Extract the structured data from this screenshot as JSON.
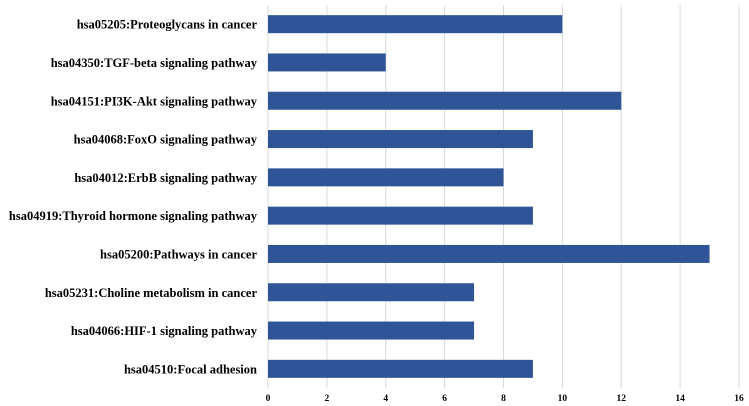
{
  "chart_data": {
    "type": "bar",
    "orientation": "horizontal",
    "categories": [
      "hsa05205:Proteoglycans in cancer",
      "hsa04350:TGF-beta signaling pathway",
      "hsa04151:PI3K-Akt signaling pathway",
      "hsa04068:FoxO signaling pathway",
      "hsa04012:ErbB signaling pathway",
      "hsa04919:Thyroid hormone signaling pathway",
      "hsa05200:Pathways in cancer",
      "hsa05231:Choline metabolism in cancer",
      "hsa04066:HIF-1 signaling pathway",
      "hsa04510:Focal adhesion"
    ],
    "values": [
      10,
      4,
      12,
      9,
      8,
      9,
      15,
      7,
      7,
      9
    ],
    "xlim": [
      0,
      16
    ],
    "xticks": [
      "0",
      "2",
      "4",
      "6",
      "8",
      "10",
      "12",
      "14",
      "16"
    ],
    "title": "",
    "xlabel": "",
    "ylabel": "",
    "bar_color": "#2f5597",
    "grid": true,
    "grid_color": "#d9d9d9",
    "legend": "none"
  }
}
